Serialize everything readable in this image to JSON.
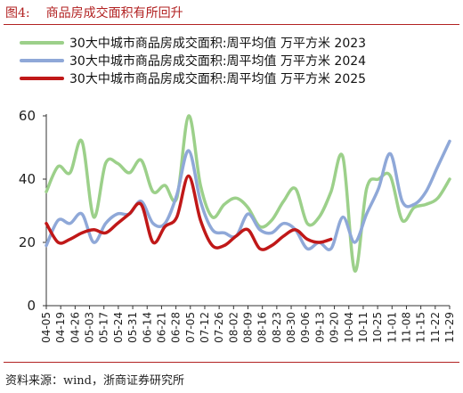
{
  "header": {
    "figure_number": "图4:",
    "figure_title": "商品房成交面积有所回升"
  },
  "footer": {
    "source": "资料来源：wind，浙商证券研究所"
  },
  "chart_data": {
    "type": "line",
    "ylim": [
      0,
      60
    ],
    "yticks": [
      0,
      20,
      40,
      60
    ],
    "xlabels": [
      "04-05",
      "04-19",
      "04-26",
      "05-03",
      "05-17",
      "05-24",
      "05-31",
      "06-14",
      "06-21",
      "06-28",
      "07-05",
      "07-12",
      "07-26",
      "08-02",
      "08-09",
      "08-16",
      "08-23",
      "08-30",
      "09-06",
      "09-13",
      "09-20",
      "10-04",
      "10-11",
      "10-25",
      "11-01",
      "11-08",
      "11-15",
      "11-22",
      "11-29"
    ],
    "x_count": 35,
    "legend_position": "top",
    "series": [
      {
        "name": "30大中城市商品房成交面积:周平均值  万平方米 2023",
        "color": "#9cd08a",
        "values": [
          36,
          44,
          42,
          52,
          28,
          45,
          45,
          42,
          46,
          36,
          38,
          34,
          60,
          38,
          28,
          32,
          34,
          31,
          25,
          27,
          33,
          37,
          26,
          28,
          36,
          47,
          11,
          37,
          40,
          41,
          27,
          31,
          32,
          34,
          40
        ]
      },
      {
        "name": "30大中城市商品房成交面积:周平均值  万平方米 2024",
        "color": "#8fa8d8",
        "values": [
          19,
          27,
          26,
          29,
          20,
          26,
          29,
          29,
          33,
          26,
          26,
          35,
          49,
          33,
          24,
          23,
          22,
          29,
          24,
          23,
          26,
          24,
          18,
          20,
          18,
          28,
          20,
          29,
          37,
          48,
          33,
          32,
          36,
          44,
          52
        ]
      },
      {
        "name": "30大中城市商品房成交面积:周平均值  万平方米 2025",
        "color": "#c01818",
        "values": [
          26,
          20,
          21,
          23,
          24,
          23,
          26,
          29,
          32,
          20,
          25,
          28,
          41,
          27,
          19,
          19,
          22,
          24,
          18,
          19,
          22,
          24,
          21,
          20,
          21
        ]
      }
    ]
  }
}
